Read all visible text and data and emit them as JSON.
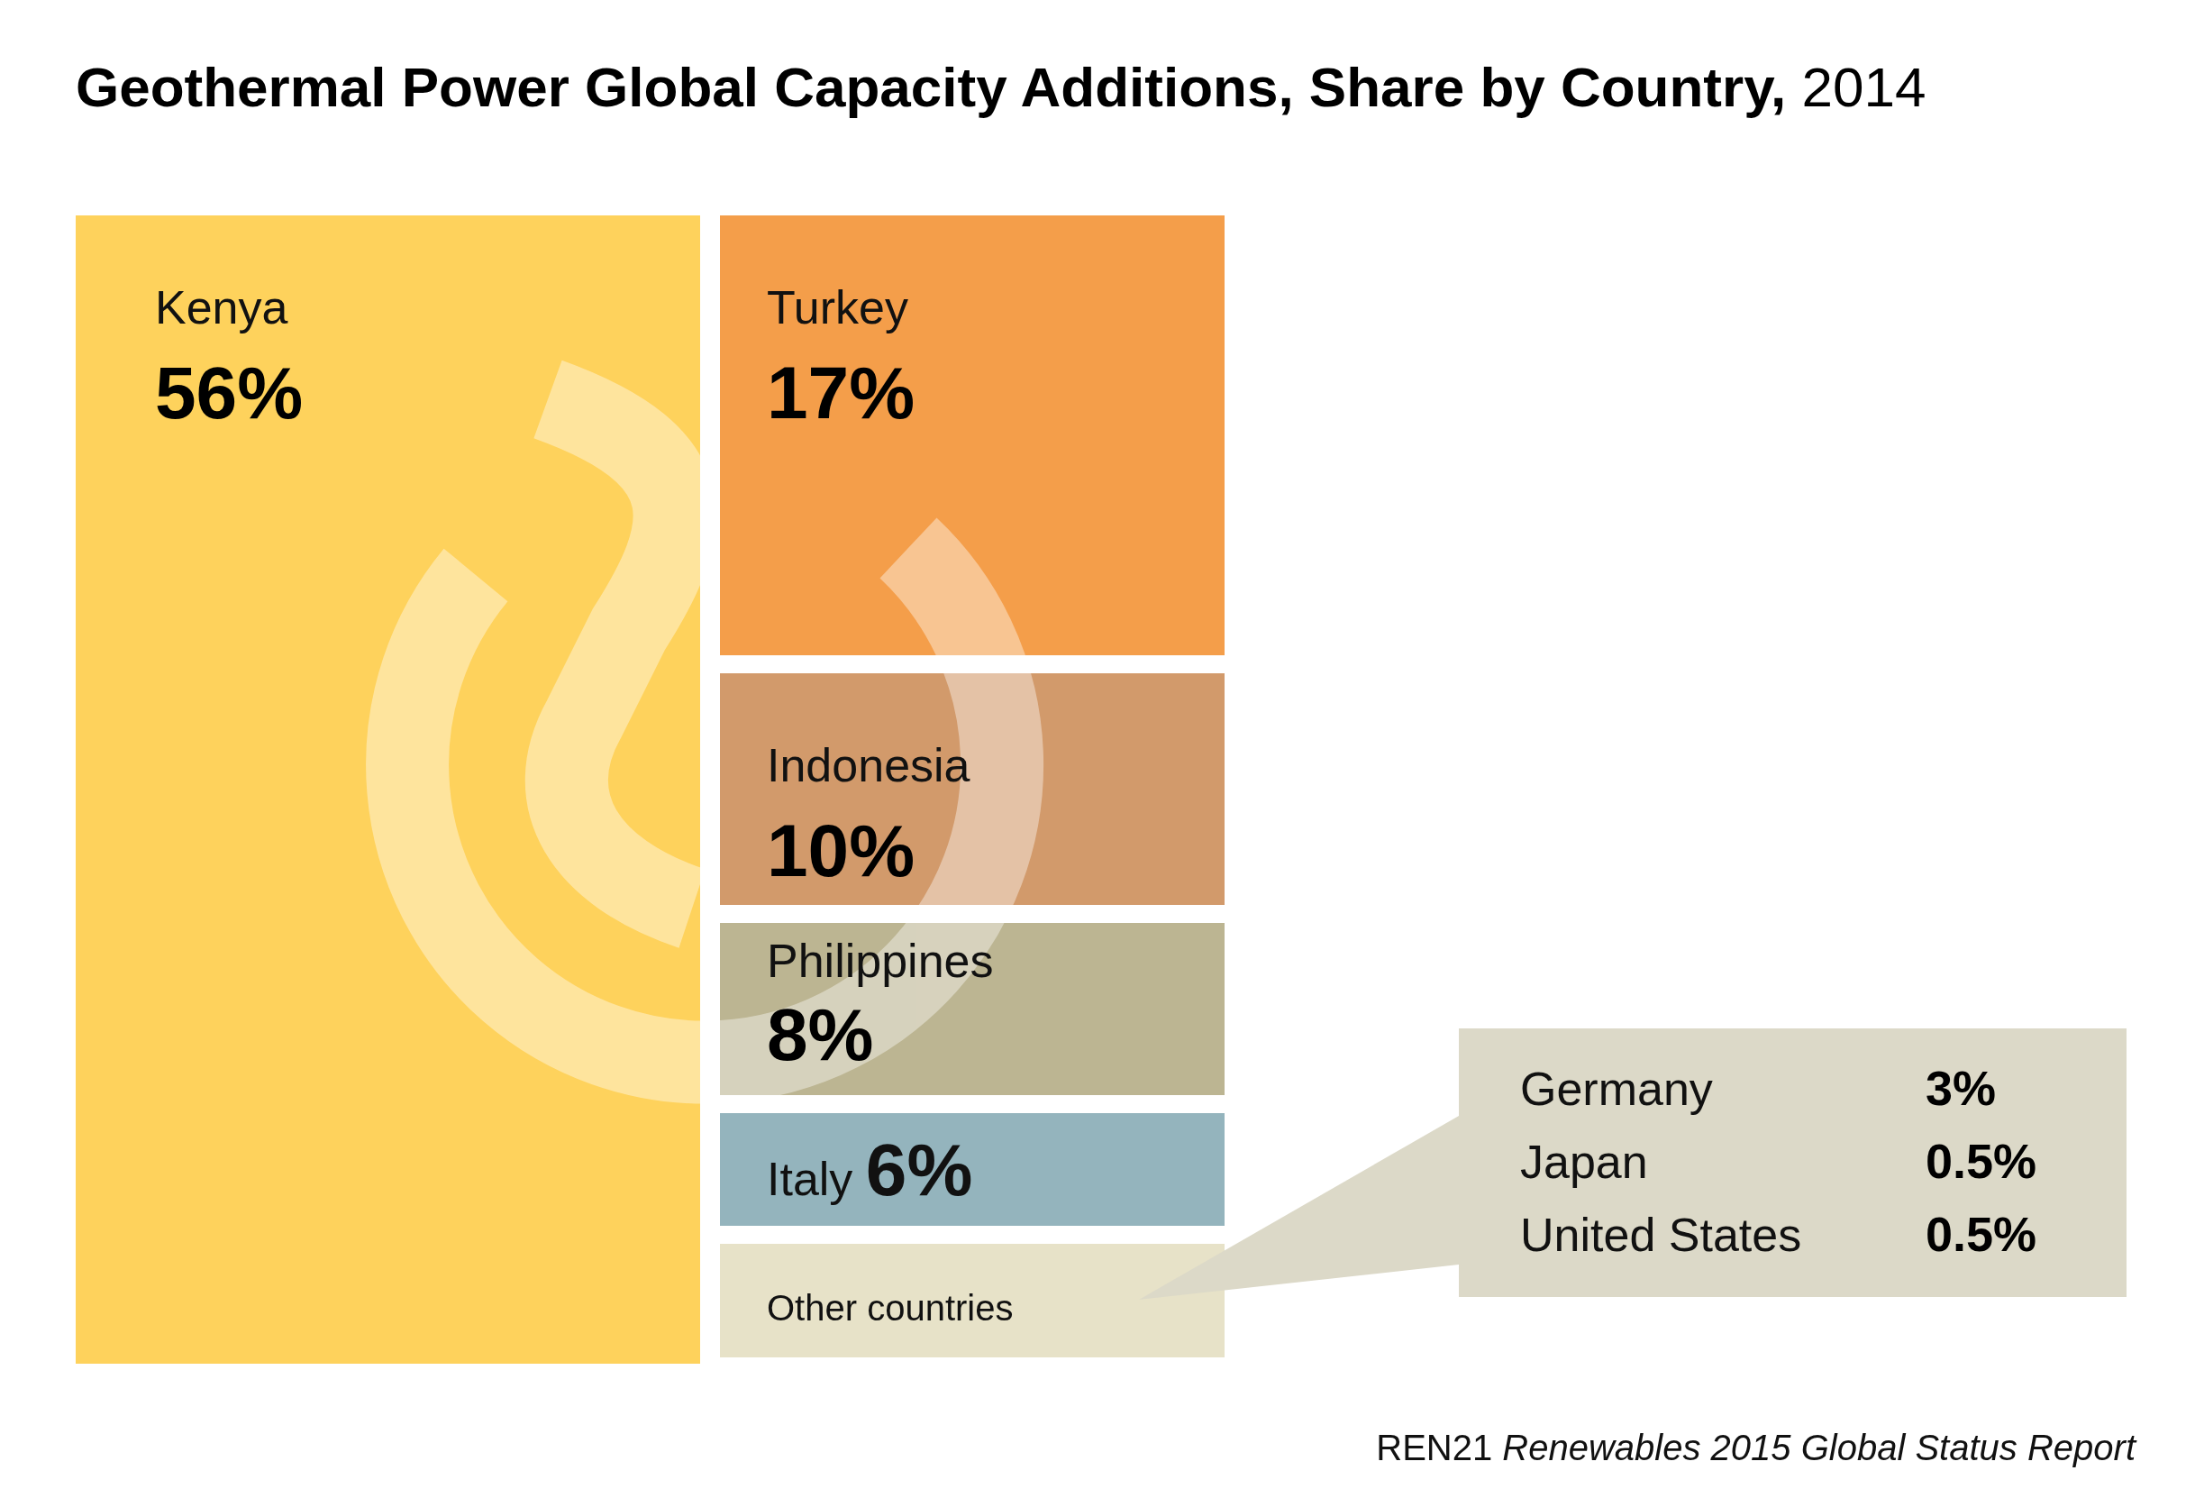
{
  "chart_data": [
    {
      "type": "other",
      "title": "Geothermal Power Global Capacity Additions, Share by Country,",
      "subtitle": "2014",
      "categories": [
        "Kenya",
        "Turkey",
        "Indonesia",
        "Philippines",
        "Italy",
        "Other countries"
      ],
      "values": [
        56,
        17,
        10,
        8,
        6,
        null
      ],
      "value_labels": [
        "56%",
        "17%",
        "10%",
        "8%",
        "6%",
        null
      ],
      "colors": [
        "#fed25c",
        "#f49e4a",
        "#d29a6b",
        "#bcb592",
        "#94b4bd",
        "#e7e2c8"
      ],
      "annotations": [
        "REN21 Renewables 2015 Global Status Report"
      ]
    },
    {
      "type": "other",
      "categories": [
        "Germany",
        "Japan",
        "United States"
      ],
      "values": [
        3,
        0.5,
        0.5
      ],
      "value_labels": [
        "3%",
        "0.5%",
        "0.5%"
      ],
      "color": "#dcd9c8"
    }
  ]
}
